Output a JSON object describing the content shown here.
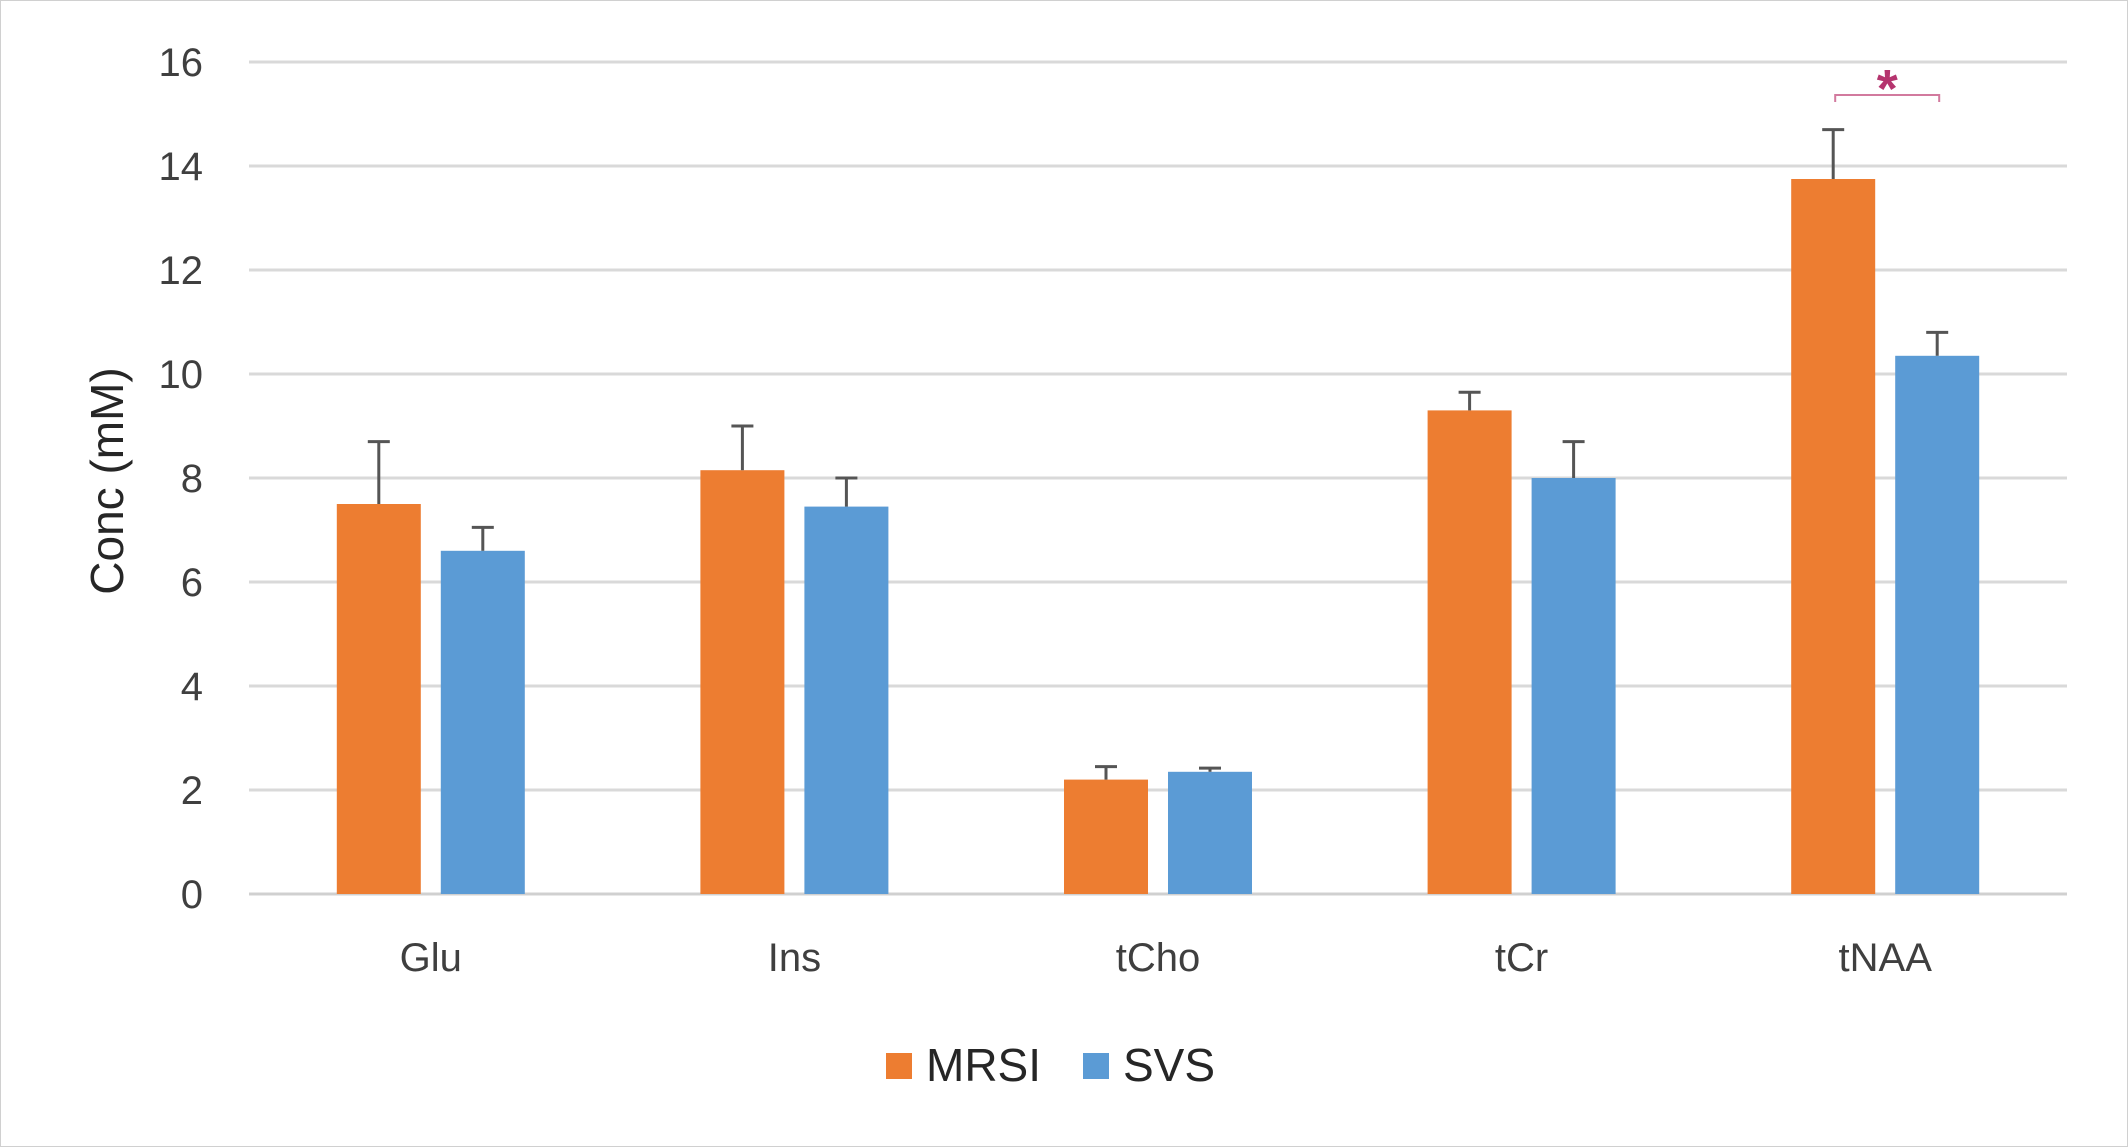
{
  "chart_data": {
    "type": "bar",
    "categories": [
      "Glu",
      "Ins",
      "tCho",
      "tCr",
      "tNAA"
    ],
    "series": [
      {
        "name": "MRSI",
        "color": "#ed7d31",
        "values": [
          7.5,
          8.15,
          2.2,
          9.3,
          13.75
        ],
        "errors": [
          1.2,
          0.85,
          0.25,
          0.35,
          0.95
        ]
      },
      {
        "name": "SVS",
        "color": "#5b9bd5",
        "values": [
          6.6,
          7.45,
          2.35,
          8.0,
          10.35
        ],
        "errors": [
          0.45,
          0.55,
          0.07,
          0.7,
          0.45
        ]
      }
    ],
    "ylabel": "Conc (mM)",
    "xlabel": "",
    "ylim": [
      0,
      16
    ],
    "yticks": [
      0,
      2,
      4,
      6,
      8,
      10,
      12,
      14,
      16
    ],
    "grid": true,
    "legend_position": "bottom-center",
    "annotations": [
      {
        "text": "*",
        "category": "tNAA",
        "meaning": "significance bracket between MRSI and SVS",
        "color": "#b5346e"
      }
    ]
  }
}
